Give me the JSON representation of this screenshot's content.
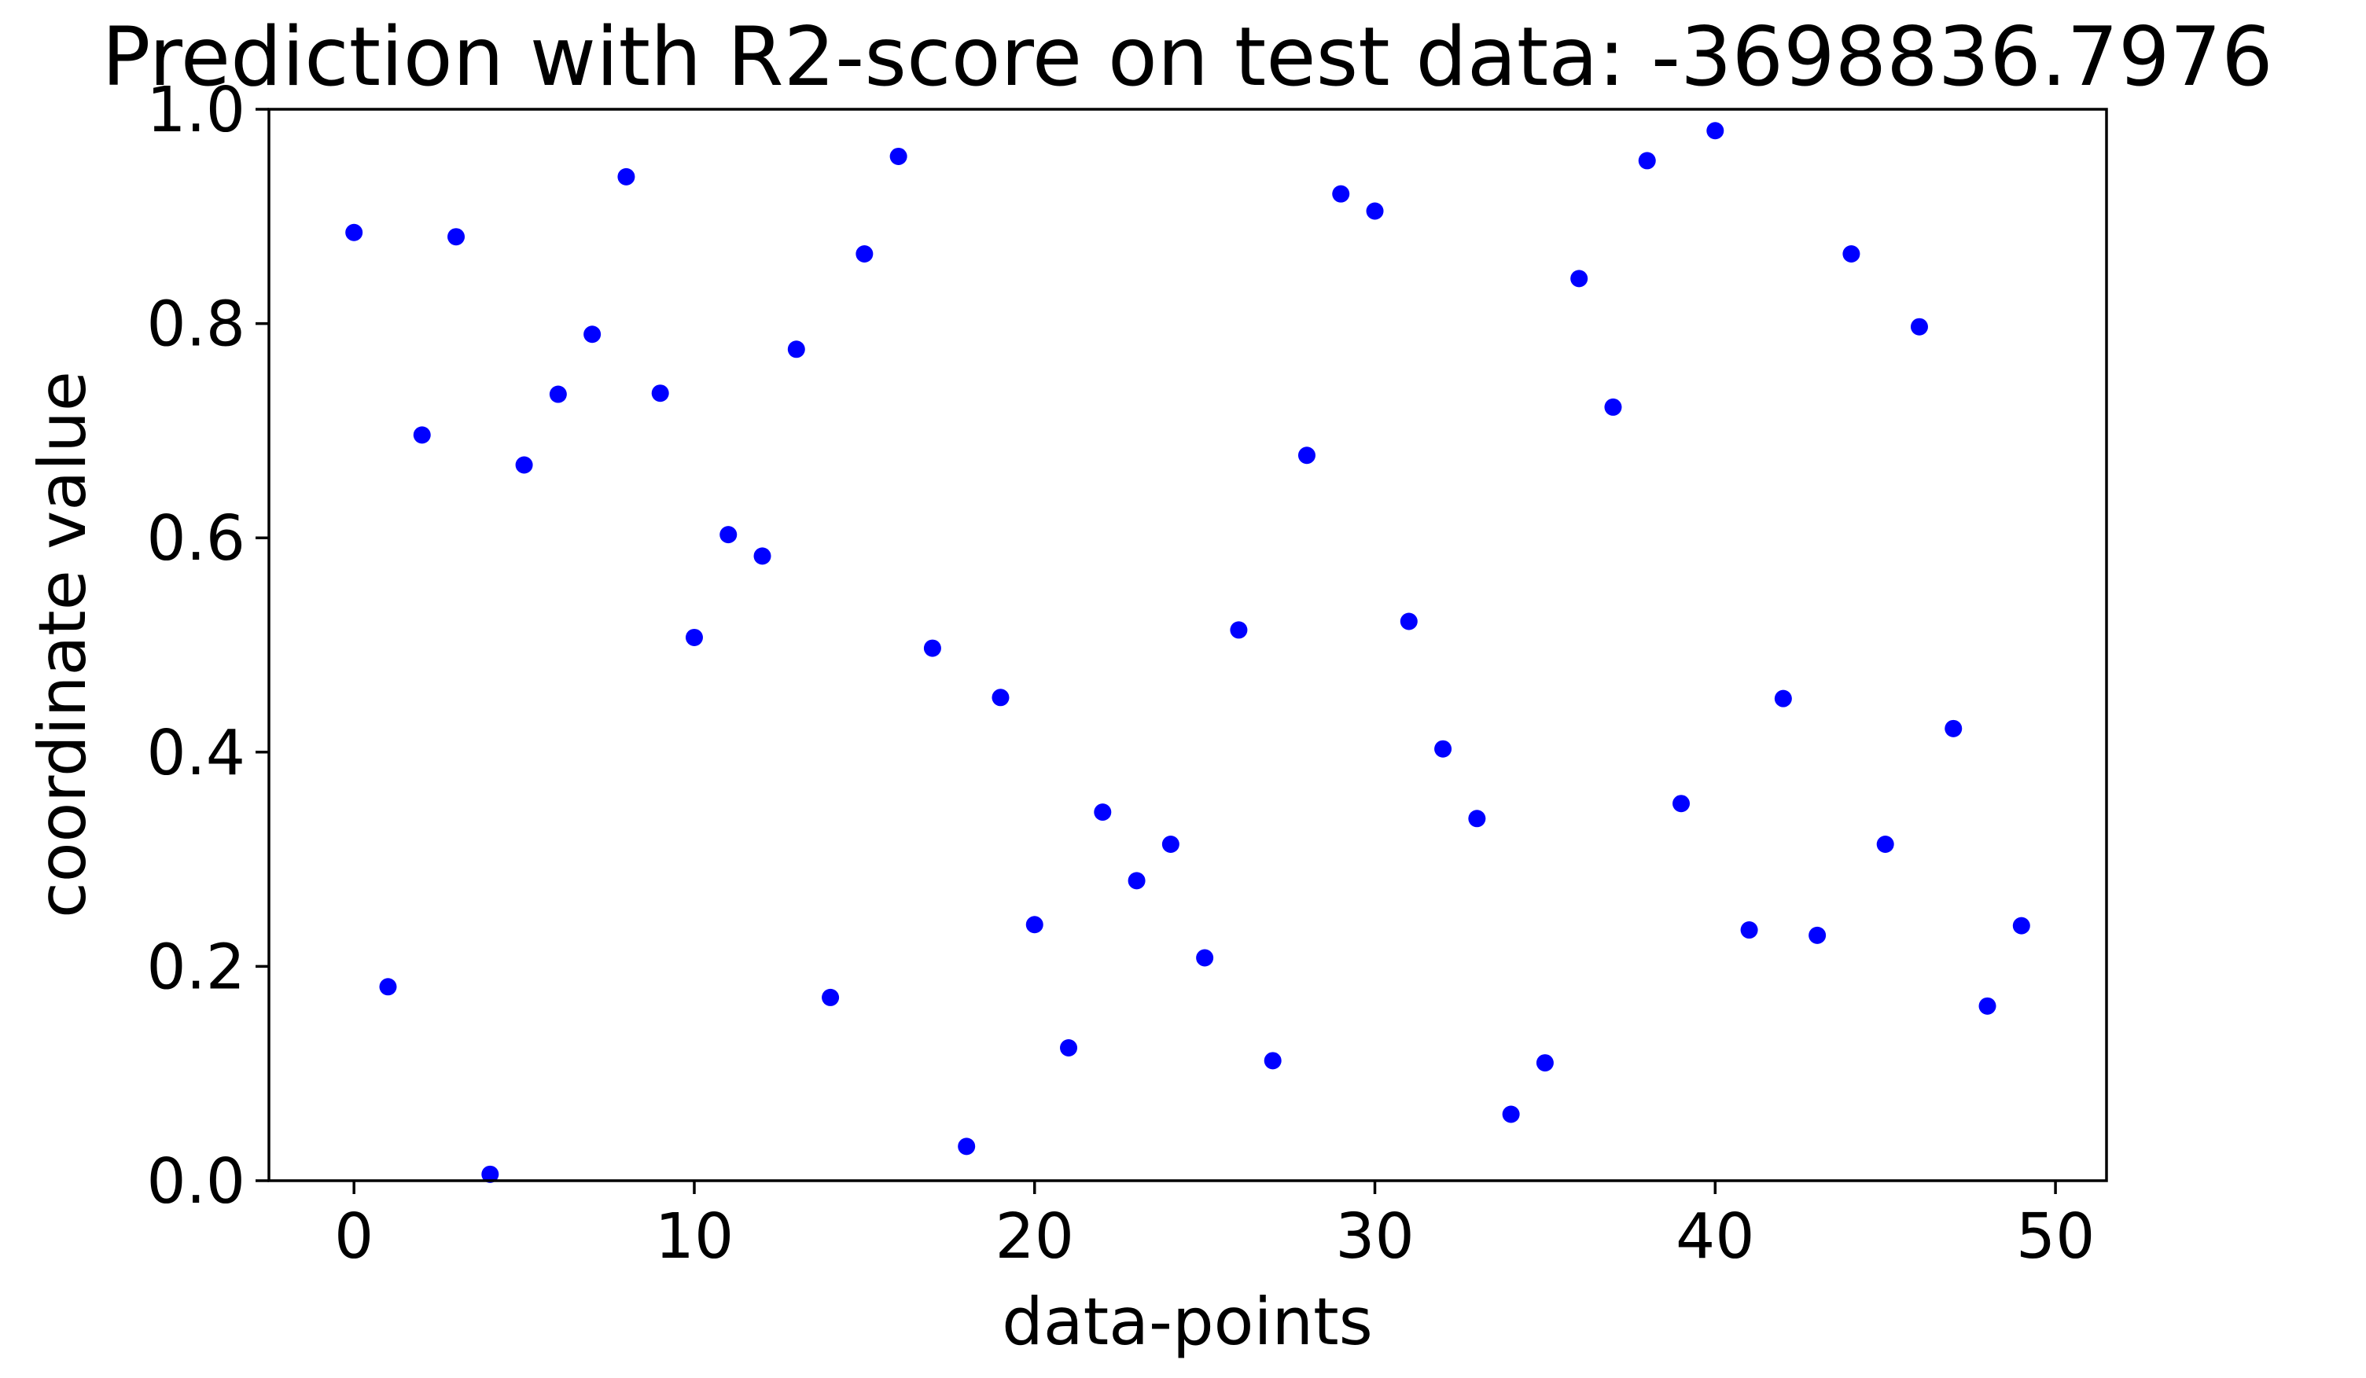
{
  "chart_data": {
    "type": "scatter",
    "title": "Prediction with R2-score on test data: -3698836.7976",
    "xlabel": "data-points",
    "ylabel": "coordinate value",
    "xlim": [
      -2.5,
      51.5
    ],
    "ylim": [
      0.0,
      1.0
    ],
    "xticks": [
      0,
      10,
      20,
      30,
      40,
      50
    ],
    "xtick_labels": [
      "0",
      "10",
      "20",
      "30",
      "40",
      "50"
    ],
    "yticks": [
      0.0,
      0.2,
      0.4,
      0.6,
      0.8,
      1.0
    ],
    "ytick_labels": [
      "0.0",
      "0.2",
      "0.4",
      "0.6",
      "0.8",
      "1.0"
    ],
    "grid": false,
    "legend": "none",
    "marker_color": "#0000ff",
    "series": [
      {
        "x": [
          0,
          1,
          2,
          3,
          4,
          5,
          6,
          7,
          8,
          9,
          10,
          11,
          12,
          13,
          14,
          15,
          16,
          17,
          18,
          19,
          20,
          21,
          22,
          23,
          24,
          25,
          26,
          27,
          28,
          29,
          30,
          31,
          32,
          33,
          34,
          35,
          36,
          37,
          38,
          39,
          40,
          41,
          42,
          43,
          44,
          45,
          46,
          47,
          48,
          49
        ],
        "y": [
          0.885,
          0.181,
          0.696,
          0.881,
          0.006,
          0.668,
          0.734,
          0.79,
          0.937,
          0.735,
          0.507,
          0.603,
          0.583,
          0.776,
          0.171,
          0.865,
          0.956,
          0.497,
          0.032,
          0.451,
          0.239,
          0.124,
          0.344,
          0.28,
          0.314,
          0.208,
          0.514,
          0.112,
          0.677,
          0.921,
          0.905,
          0.522,
          0.403,
          0.338,
          0.062,
          0.11,
          0.842,
          0.722,
          0.952,
          0.352,
          0.98,
          0.234,
          0.45,
          0.229,
          0.865,
          0.314,
          0.797,
          0.422,
          0.163,
          0.238
        ]
      }
    ]
  }
}
